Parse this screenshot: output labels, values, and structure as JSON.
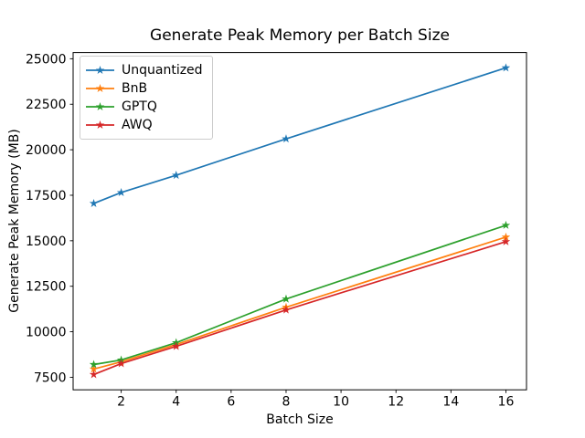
{
  "chart_data": {
    "type": "line",
    "title": "Generate Peak Memory per Batch Size",
    "xlabel": "Batch Size",
    "ylabel": "Generate Peak Memory (MB)",
    "x": [
      1,
      2,
      4,
      8,
      16
    ],
    "series": [
      {
        "name": "Unquantized",
        "color": "#1f77b4",
        "marker": "star",
        "values": [
          17050,
          17650,
          18600,
          20600,
          24500
        ]
      },
      {
        "name": "BnB",
        "color": "#ff7f0e",
        "marker": "star",
        "values": [
          7950,
          8350,
          9300,
          11350,
          15200
        ]
      },
      {
        "name": "GPTQ",
        "color": "#2ca02c",
        "marker": "star",
        "values": [
          8200,
          8450,
          9400,
          11800,
          15850
        ]
      },
      {
        "name": "AWQ",
        "color": "#d62728",
        "marker": "star",
        "values": [
          7650,
          8250,
          9200,
          11200,
          14950
        ]
      }
    ],
    "xticks": [
      2,
      4,
      6,
      8,
      10,
      12,
      14,
      16
    ],
    "yticks": [
      7500,
      10000,
      12500,
      15000,
      17500,
      20000,
      22500,
      25000
    ],
    "xlim": [
      0.25,
      16.75
    ],
    "ylim": [
      6810,
      25340
    ],
    "grid": false,
    "legend_position": "upper left",
    "axis_color": "#000000",
    "background_color": "#ffffff"
  }
}
